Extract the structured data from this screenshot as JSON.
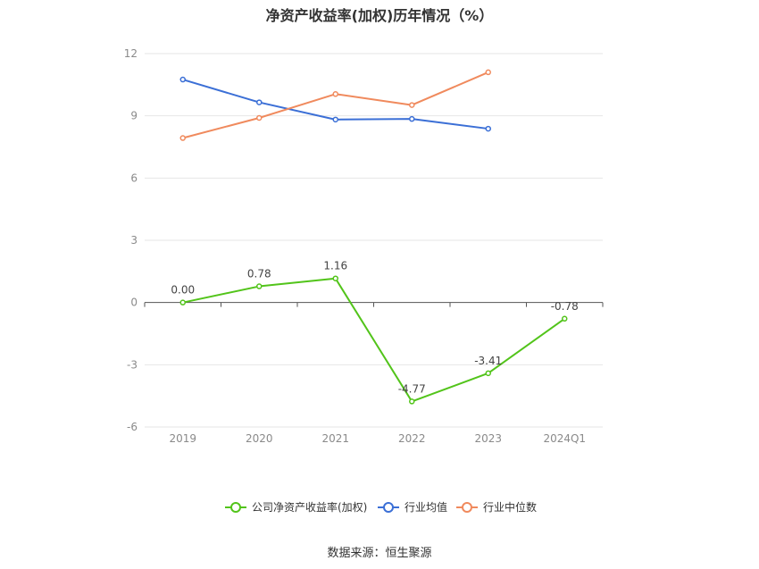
{
  "chart_data": {
    "type": "line",
    "title": "净资产收益率(加权)历年情况（%）",
    "categories": [
      "2019",
      "2020",
      "2021",
      "2022",
      "2023",
      "2024Q1"
    ],
    "ylim": [
      -6,
      12
    ],
    "yticks": [
      -6,
      -3,
      0,
      3,
      6,
      9,
      12
    ],
    "grid": true,
    "legend_position": "bottom",
    "series": [
      {
        "name": "公司净资产收益率(加权)",
        "color": "#52c41a",
        "values": [
          0.0,
          0.78,
          1.16,
          -4.77,
          -3.41,
          -0.78
        ],
        "labels": [
          "0.00",
          "0.78",
          "1.16",
          "-4.77",
          "-3.41",
          "-0.78"
        ],
        "show_labels": true
      },
      {
        "name": "行业均值",
        "color": "#3b6fd6",
        "values": [
          10.75,
          9.65,
          8.82,
          8.85,
          8.38,
          null
        ],
        "show_labels": false
      },
      {
        "name": "行业中位数",
        "color": "#f08a5d",
        "values": [
          7.93,
          8.9,
          10.05,
          9.52,
          11.1,
          null
        ],
        "show_labels": false
      }
    ]
  },
  "source_note": "数据来源：恒生聚源"
}
